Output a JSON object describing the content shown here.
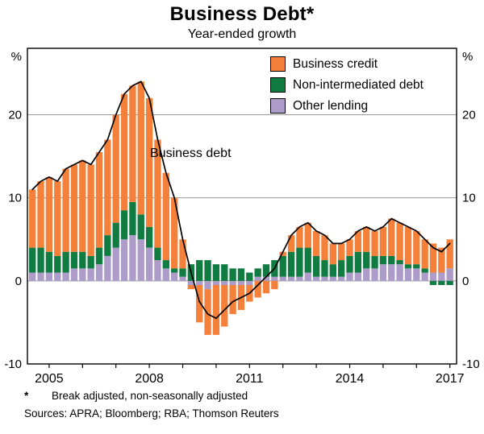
{
  "chart_data": {
    "type": "bar",
    "subtype": "stacked-bars-with-line",
    "title": "Business Debt*",
    "subtitle": "Year-ended growth",
    "annotation": "Business debt",
    "y_unit": "%",
    "ylim": [
      -10,
      28
    ],
    "xlim": [
      2004.35,
      2017.2
    ],
    "yticks": [
      -10,
      0,
      10,
      20
    ],
    "gridlines": [
      0,
      10,
      20
    ],
    "xticks": [
      2005,
      2008,
      2011,
      2014,
      2017
    ],
    "grid": true,
    "legend_position": "top-right-inside",
    "legend": [
      {
        "label": "Business credit",
        "color": "#F5803A"
      },
      {
        "label": "Non-intermediated debt",
        "color": "#107C41"
      },
      {
        "label": "Other lending",
        "color": "#AD9CC9"
      }
    ],
    "x": [
      2004.5,
      2004.75,
      2005,
      2005.25,
      2005.5,
      2005.75,
      2006,
      2006.25,
      2006.5,
      2006.75,
      2007,
      2007.25,
      2007.5,
      2007.75,
      2008,
      2008.25,
      2008.5,
      2008.75,
      2009,
      2009.25,
      2009.5,
      2009.75,
      2010,
      2010.25,
      2010.5,
      2010.75,
      2011,
      2011.25,
      2011.5,
      2011.75,
      2012,
      2012.25,
      2012.5,
      2012.75,
      2013,
      2013.25,
      2013.5,
      2013.75,
      2014,
      2014.25,
      2014.5,
      2014.75,
      2015,
      2015.25,
      2015.5,
      2015.75,
      2016,
      2016.25,
      2016.5,
      2016.75,
      2017
    ],
    "series": [
      {
        "name": "Other lending",
        "color": "#AD9CC9",
        "values": [
          1,
          1,
          1,
          1,
          1,
          1.5,
          1.5,
          1.5,
          2,
          3,
          4,
          5,
          5.5,
          5,
          4,
          2.5,
          1.5,
          1,
          0.5,
          -0.5,
          -0.5,
          -1,
          -0.5,
          -0.5,
          -0.5,
          -0.5,
          -0.5,
          0.5,
          0.5,
          0.5,
          0.5,
          0.5,
          0.5,
          1,
          0.5,
          0.5,
          0.5,
          0.5,
          1,
          1,
          1.5,
          1.5,
          2,
          2,
          2,
          1.5,
          1.5,
          1,
          1,
          1,
          1.5
        ]
      },
      {
        "name": "Non-intermediated debt",
        "color": "#107C41",
        "values": [
          3,
          3,
          2.5,
          2,
          2.5,
          2,
          2,
          1.5,
          2,
          2.5,
          3,
          3.5,
          4,
          3,
          2.5,
          1.5,
          1,
          0.5,
          1,
          2,
          2.5,
          2.5,
          2,
          2,
          1.5,
          1.5,
          1,
          1,
          1.5,
          2,
          2.5,
          3,
          3.5,
          3,
          2.5,
          2,
          1.5,
          2,
          2,
          2.5,
          2,
          1.5,
          1,
          1,
          0.5,
          0.5,
          0.5,
          0.5,
          -0.5,
          -0.5,
          -0.5
        ]
      },
      {
        "name": "Business credit",
        "color": "#F5803A",
        "values": [
          7,
          8,
          9,
          9,
          10,
          10.5,
          11,
          11,
          11.5,
          11.5,
          13,
          14,
          14,
          16,
          15.5,
          13,
          10.5,
          8.5,
          3.5,
          -0.5,
          -4.5,
          -5.5,
          -6,
          -5,
          -3.5,
          -3,
          -2,
          -2,
          -1.5,
          -1,
          0.5,
          2,
          2.5,
          3,
          3,
          3,
          2.5,
          2,
          2,
          2.5,
          3,
          3,
          3.5,
          4.5,
          4.5,
          4.5,
          4,
          3.5,
          3.5,
          3,
          3.5
        ]
      }
    ],
    "line": {
      "name": "Business debt",
      "color": "#000000",
      "values": [
        11,
        12,
        12.5,
        12,
        13.5,
        14,
        14.5,
        14,
        15.5,
        17,
        20,
        22.5,
        23.5,
        24,
        22,
        17,
        13,
        10,
        5,
        1,
        -2.5,
        -4,
        -4.5,
        -3.5,
        -2.5,
        -2,
        -1.5,
        -0.5,
        0.5,
        1.5,
        3.5,
        5.5,
        6.5,
        7,
        6,
        5.5,
        4.5,
        4.5,
        5,
        6,
        6.5,
        6,
        6.5,
        7.5,
        7,
        6.5,
        6,
        5,
        4,
        3.5,
        4.5
      ]
    }
  },
  "footnote": {
    "marker": "*",
    "text": "Break adjusted, non-seasonally adjusted"
  },
  "sources": "Sources: APRA; Bloomberg; RBA; Thomson Reuters"
}
